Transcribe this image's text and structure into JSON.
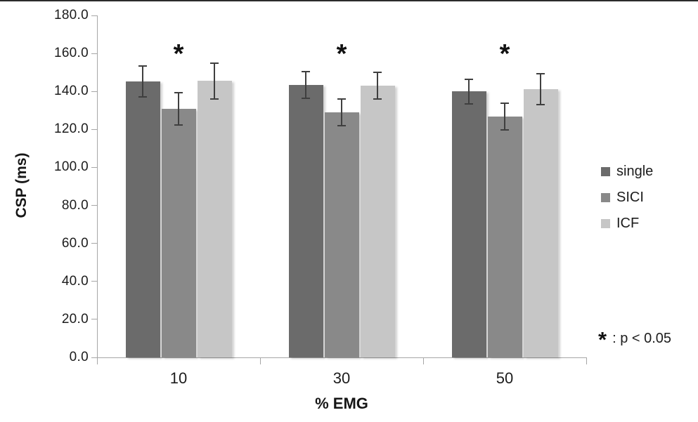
{
  "figure": {
    "background": "#ffffff",
    "top_rule_color": "#2b2b2b"
  },
  "chart_data": {
    "type": "bar",
    "title": "",
    "xlabel": "% EMG",
    "ylabel": "CSP (ms)",
    "categories": [
      "10",
      "30",
      "50"
    ],
    "series": [
      {
        "name": "single",
        "color": "#6b6b6b",
        "values": [
          145.3,
          143.4,
          140.0
        ],
        "errors": [
          8.0,
          7.0,
          6.5
        ]
      },
      {
        "name": "SICI",
        "color": "#898989",
        "values": [
          130.9,
          128.9,
          126.9
        ],
        "errors": [
          8.5,
          7.0,
          7.0
        ]
      },
      {
        "name": "ICF",
        "color": "#c6c6c6",
        "values": [
          145.5,
          143.1,
          141.2
        ],
        "errors": [
          9.5,
          7.0,
          8.0
        ]
      }
    ],
    "ylim": [
      0,
      180
    ],
    "ytick_step": 20,
    "ytick_labels": [
      "0.0",
      "20.0",
      "40.0",
      "60.0",
      "80.0",
      "100.0",
      "120.0",
      "140.0",
      "160.0",
      "180.0"
    ],
    "grid": false,
    "legend_position": "right",
    "error_bars": true,
    "significance_markers": [
      {
        "category": "10",
        "series": "SICI",
        "symbol": "*"
      },
      {
        "category": "30",
        "series": "SICI",
        "symbol": "*"
      },
      {
        "category": "50",
        "series": "SICI",
        "symbol": "*"
      }
    ],
    "note": {
      "symbol": "*",
      "text": ": p < 0.05"
    },
    "colors": {
      "axis": "#a6a6a6",
      "error_bar": "#3f3f3f",
      "text": "#1c1c1c"
    }
  }
}
